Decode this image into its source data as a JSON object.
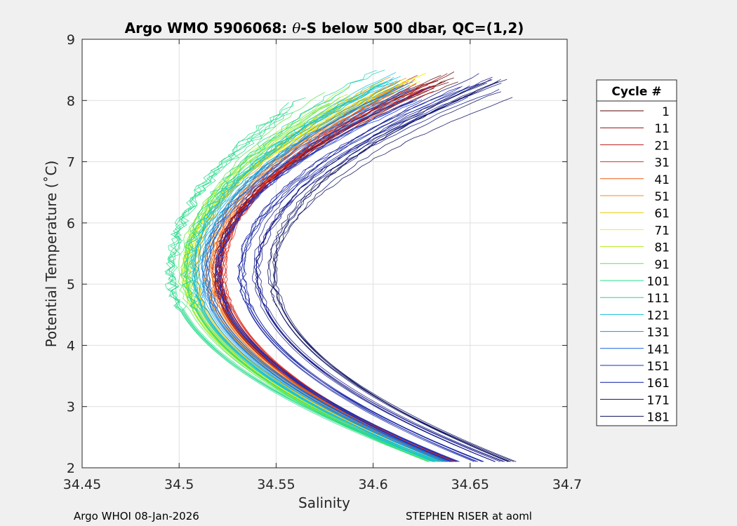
{
  "chart_data": {
    "type": "line",
    "title_prefix": "Argo WMO 5906068: ",
    "title_symbol": "θ",
    "title_suffix": "-S below 500 dbar,  QC=(1,2)",
    "xlabel": "Salinity",
    "ylabel": "Potential Temperature (˚C)",
    "xlim": [
      34.45,
      34.7
    ],
    "ylim": [
      2,
      9
    ],
    "xticks": [
      34.45,
      34.5,
      34.55,
      34.6,
      34.65,
      34.7
    ],
    "xtick_labels": [
      "34.45",
      "34.5",
      "34.55",
      "34.6",
      "34.65",
      "34.7"
    ],
    "yticks": [
      2,
      3,
      4,
      5,
      6,
      7,
      8,
      9
    ],
    "ytick_labels": [
      "2",
      "3",
      "4",
      "5",
      "6",
      "7",
      "8",
      "9"
    ],
    "grid": true,
    "legend_title": "Cycle #",
    "legend_position": "right",
    "legend": [
      {
        "label": "1",
        "color": "#5c0000"
      },
      {
        "label": "11",
        "color": "#9a0a0a"
      },
      {
        "label": "21",
        "color": "#c01414"
      },
      {
        "label": "31",
        "color": "#e02e1a"
      },
      {
        "label": "41",
        "color": "#f05a14"
      },
      {
        "label": "51",
        "color": "#f08c14"
      },
      {
        "label": "61",
        "color": "#e6c800"
      },
      {
        "label": "71",
        "color": "#f4f000"
      },
      {
        "label": "81",
        "color": "#b4ec1a"
      },
      {
        "label": "91",
        "color": "#5ae84a"
      },
      {
        "label": "101",
        "color": "#28dc8c"
      },
      {
        "label": "111",
        "color": "#1ed2b4"
      },
      {
        "label": "121",
        "color": "#14bee0"
      },
      {
        "label": "131",
        "color": "#1496d8"
      },
      {
        "label": "141",
        "color": "#1464dc"
      },
      {
        "label": "151",
        "color": "#0c32c8"
      },
      {
        "label": "161",
        "color": "#0a18a0"
      },
      {
        "label": "171",
        "color": "#080c82"
      },
      {
        "label": "181",
        "color": "#050a5c"
      }
    ],
    "profiles": [
      {
        "cycle": 1,
        "color": "#5c0000",
        "s_min": 34.519,
        "s_bottom": 34.64,
        "s_top": 34.64,
        "t_top": 8.38
      },
      {
        "cycle": 11,
        "color": "#9a0a0a",
        "s_min": 34.52,
        "s_bottom": 34.641,
        "s_top": 34.634,
        "t_top": 8.33
      },
      {
        "cycle": 21,
        "color": "#c01414",
        "s_min": 34.521,
        "s_bottom": 34.64,
        "s_top": 34.628,
        "t_top": 8.28
      },
      {
        "cycle": 31,
        "color": "#e02e1a",
        "s_min": 34.522,
        "s_bottom": 34.639,
        "s_top": 34.622,
        "t_top": 8.22
      },
      {
        "cycle": 41,
        "color": "#f05a14",
        "s_min": 34.518,
        "s_bottom": 34.638,
        "s_top": 34.616,
        "t_top": 8.2
      },
      {
        "cycle": 51,
        "color": "#f08c14",
        "s_min": 34.515,
        "s_bottom": 34.637,
        "s_top": 34.612,
        "t_top": 8.24
      },
      {
        "cycle": 61,
        "color": "#e6c800",
        "s_min": 34.508,
        "s_bottom": 34.635,
        "s_top": 34.6,
        "t_top": 8.2
      },
      {
        "cycle": 71,
        "color": "#f4f000",
        "s_min": 34.505,
        "s_bottom": 34.634,
        "s_top": 34.622,
        "t_top": 8.38
      },
      {
        "cycle": 81,
        "color": "#b4ec1a",
        "s_min": 34.503,
        "s_bottom": 34.632,
        "s_top": 34.59,
        "t_top": 8.1
      },
      {
        "cycle": 91,
        "color": "#5ae84a",
        "s_min": 34.502,
        "s_bottom": 34.63,
        "s_top": 34.58,
        "t_top": 8.0
      },
      {
        "cycle": 101,
        "color": "#28dc8c",
        "s_min": 34.497,
        "s_bottom": 34.632,
        "s_top": 34.56,
        "t_top": 7.9
      },
      {
        "cycle": 111,
        "color": "#1ed2b4",
        "s_min": 34.505,
        "s_bottom": 34.633,
        "s_top": 34.606,
        "t_top": 8.36
      },
      {
        "cycle": 121,
        "color": "#14bee0",
        "s_min": 34.508,
        "s_bottom": 34.634,
        "s_top": 34.612,
        "t_top": 8.34
      },
      {
        "cycle": 131,
        "color": "#1496d8",
        "s_min": 34.511,
        "s_bottom": 34.636,
        "s_top": 34.615,
        "t_top": 8.2
      },
      {
        "cycle": 141,
        "color": "#1464dc",
        "s_min": 34.514,
        "s_bottom": 34.639,
        "s_top": 34.618,
        "t_top": 8.12
      },
      {
        "cycle": 151,
        "color": "#0c32c8",
        "s_min": 34.52,
        "s_bottom": 34.643,
        "s_top": 34.625,
        "t_top": 8.1
      },
      {
        "cycle": 161,
        "color": "#0a18a0",
        "s_min": 34.532,
        "s_bottom": 34.655,
        "s_top": 34.65,
        "t_top": 8.2
      },
      {
        "cycle": 171,
        "color": "#080c82",
        "s_min": 34.54,
        "s_bottom": 34.665,
        "s_top": 34.66,
        "t_top": 8.3
      },
      {
        "cycle": 181,
        "color": "#050a5c",
        "s_min": 34.548,
        "s_bottom": 34.672,
        "s_top": 34.667,
        "t_top": 8.2
      }
    ],
    "profile_model": {
      "t_bottom": 2.1,
      "t_salinity_min": 5.2
    }
  },
  "footer": {
    "left": "Argo WHOI 08-Jan-2026",
    "right": "STEPHEN RISER at aoml"
  }
}
